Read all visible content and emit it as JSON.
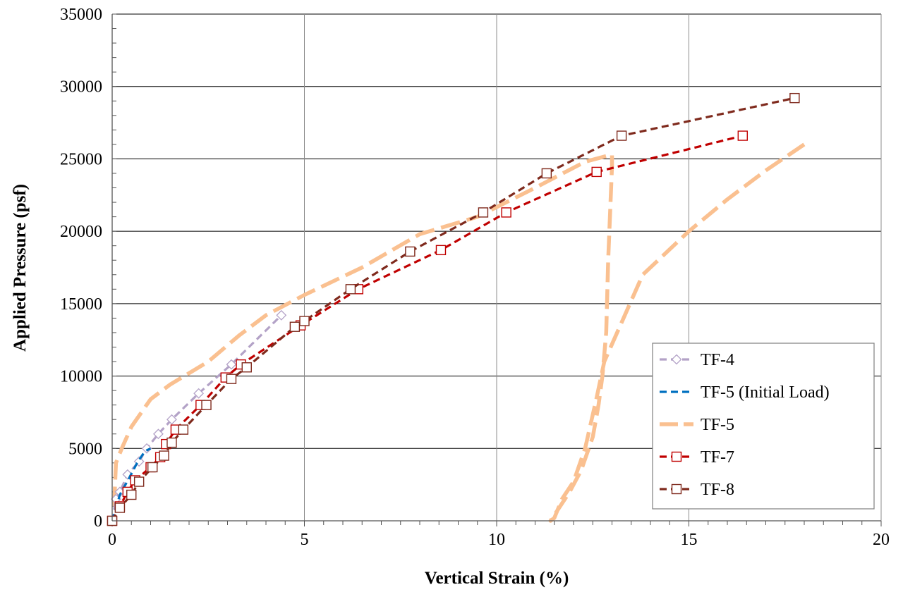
{
  "chart_data": {
    "type": "line",
    "title": "",
    "xlabel": "Vertical Strain (%)",
    "ylabel": "Applied Pressure (psf)",
    "xlim": [
      0,
      20
    ],
    "ylim": [
      0,
      35000
    ],
    "x_ticks": [
      0,
      5,
      10,
      15,
      20
    ],
    "y_ticks": [
      0,
      5000,
      10000,
      15000,
      20000,
      25000,
      30000,
      35000
    ],
    "x_tick_labels": [
      "0",
      "5",
      "10",
      "15",
      "20"
    ],
    "y_tick_labels": [
      "0",
      "5000",
      "10000",
      "15000",
      "20000",
      "25000",
      "30000",
      "35000"
    ],
    "grid": true,
    "legend_position": "bottom-right",
    "series": [
      {
        "name": "TF-4",
        "color": "#b3a2c7",
        "marker": "diamond",
        "dash": "dash",
        "points": [
          [
            0.0,
            0
          ],
          [
            0.1,
            1500
          ],
          [
            0.2,
            2000
          ],
          [
            0.4,
            3200
          ],
          [
            0.7,
            4100
          ],
          [
            0.9,
            5000
          ],
          [
            1.2,
            6000
          ],
          [
            1.55,
            7000
          ],
          [
            2.25,
            8800
          ],
          [
            3.1,
            10800
          ],
          [
            4.4,
            14200
          ]
        ]
      },
      {
        "name": "TF-5 (Initial Load)",
        "color": "#0070c0",
        "marker": "none",
        "dash": "dash",
        "points": [
          [
            0.0,
            0
          ],
          [
            0.2,
            1800
          ],
          [
            0.45,
            3000
          ],
          [
            0.65,
            4000
          ],
          [
            0.85,
            4800
          ],
          [
            1.0,
            5000
          ]
        ]
      },
      {
        "name": "TF-5",
        "color": "#fac090",
        "marker": "none",
        "dash": "longdash",
        "points": [
          [
            0.05,
            1000
          ],
          [
            0.1,
            4000
          ],
          [
            0.25,
            5000
          ],
          [
            0.5,
            6500
          ],
          [
            1.0,
            8400
          ],
          [
            1.5,
            9400
          ],
          [
            2.0,
            10200
          ],
          [
            2.5,
            11000
          ],
          [
            3.3,
            12800
          ],
          [
            4.0,
            14200
          ],
          [
            5.0,
            15600
          ],
          [
            6.5,
            17500
          ],
          [
            8.0,
            19800
          ],
          [
            9.5,
            21000
          ],
          [
            11.0,
            23000
          ],
          [
            12.3,
            24800
          ],
          [
            13.0,
            25300
          ],
          [
            13.0,
            24500
          ],
          [
            12.9,
            18000
          ],
          [
            12.85,
            13000
          ],
          [
            12.75,
            10000
          ],
          [
            12.65,
            8000
          ],
          [
            12.5,
            5800
          ],
          [
            12.2,
            3500
          ],
          [
            11.9,
            2000
          ],
          [
            11.6,
            800
          ],
          [
            11.4,
            0
          ],
          [
            11.5,
            200
          ],
          [
            11.7,
            1500
          ],
          [
            12.0,
            2700
          ],
          [
            12.3,
            5000
          ],
          [
            12.6,
            8500
          ],
          [
            12.8,
            11000
          ],
          [
            13.3,
            14000
          ],
          [
            13.8,
            17000
          ],
          [
            15.0,
            20000
          ],
          [
            16.0,
            22200
          ],
          [
            17.0,
            24200
          ],
          [
            18.0,
            26000
          ]
        ]
      },
      {
        "name": "TF-7",
        "color": "#c00000",
        "marker": "square-hollow",
        "dash": "dash",
        "points": [
          [
            0.0,
            0
          ],
          [
            0.2,
            1000
          ],
          [
            0.4,
            2000
          ],
          [
            0.6,
            2800
          ],
          [
            1.0,
            3700
          ],
          [
            1.25,
            4400
          ],
          [
            1.4,
            5300
          ],
          [
            1.65,
            6300
          ],
          [
            2.3,
            8000
          ],
          [
            2.95,
            9900
          ],
          [
            3.35,
            10800
          ],
          [
            4.9,
            13500
          ],
          [
            6.4,
            16000
          ],
          [
            8.55,
            18700
          ],
          [
            10.25,
            21300
          ],
          [
            12.6,
            24100
          ],
          [
            16.4,
            26600
          ]
        ]
      },
      {
        "name": "TF-8",
        "color": "#7f2a1d",
        "marker": "square-hollow",
        "dash": "dash",
        "points": [
          [
            0.0,
            0
          ],
          [
            0.2,
            900
          ],
          [
            0.5,
            1800
          ],
          [
            0.7,
            2700
          ],
          [
            1.05,
            3700
          ],
          [
            1.35,
            4500
          ],
          [
            1.55,
            5400
          ],
          [
            1.85,
            6300
          ],
          [
            2.45,
            8000
          ],
          [
            3.1,
            9800
          ],
          [
            3.5,
            10600
          ],
          [
            4.75,
            13400
          ],
          [
            5.0,
            13800
          ],
          [
            6.2,
            16000
          ],
          [
            7.75,
            18600
          ],
          [
            9.65,
            21300
          ],
          [
            11.3,
            24000
          ],
          [
            13.25,
            26600
          ],
          [
            17.75,
            29200
          ]
        ]
      }
    ]
  },
  "legend": {
    "items": [
      {
        "label": "TF-4",
        "color": "#b3a2c7",
        "marker": "diamond",
        "dash": "dash"
      },
      {
        "label": "TF-5 (Initial Load)",
        "color": "#0070c0",
        "marker": "none",
        "dash": "dash"
      },
      {
        "label": "TF-5",
        "color": "#fac090",
        "marker": "none",
        "dash": "longdash"
      },
      {
        "label": "TF-7",
        "color": "#c00000",
        "marker": "square-hollow",
        "dash": "dash"
      },
      {
        "label": "TF-8",
        "color": "#7f2a1d",
        "marker": "square-hollow",
        "dash": "dash"
      }
    ]
  }
}
